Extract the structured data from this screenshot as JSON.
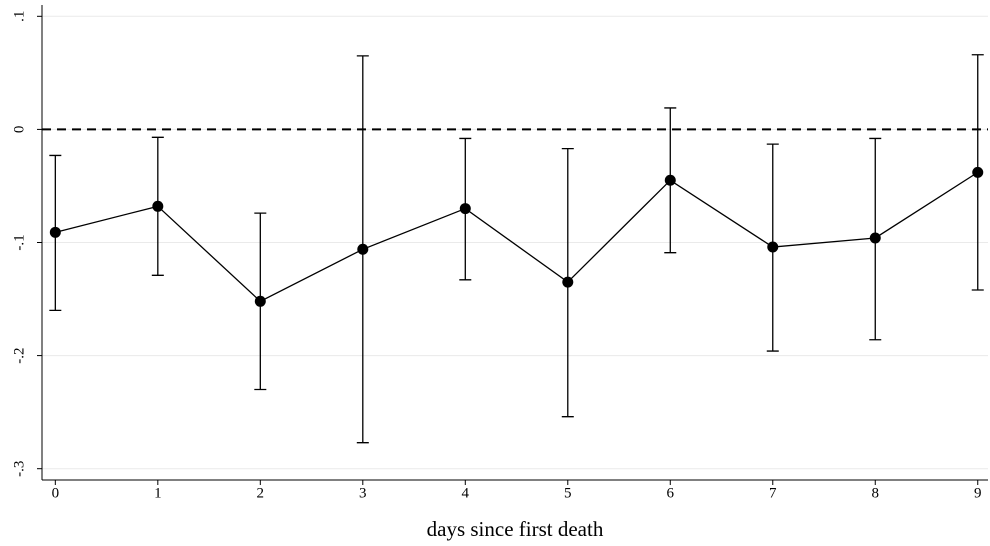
{
  "chart_data": {
    "type": "line",
    "xlabel": "days since first death",
    "x": [
      0,
      1,
      2,
      3,
      4,
      5,
      6,
      7,
      8,
      9
    ],
    "series": [
      {
        "color": "#000000",
        "values": [
          -0.091,
          -0.068,
          -0.152,
          -0.106,
          -0.07,
          -0.135,
          -0.045,
          -0.104,
          -0.096,
          -0.038
        ],
        "lower": [
          -0.16,
          -0.129,
          -0.23,
          -0.277,
          -0.133,
          -0.254,
          -0.109,
          -0.196,
          -0.186,
          -0.142
        ],
        "upper": [
          -0.023,
          -0.007,
          -0.074,
          0.065,
          -0.008,
          -0.017,
          0.019,
          -0.013,
          -0.008,
          0.066
        ]
      }
    ],
    "xlim": [
      -0.13,
      9.1
    ],
    "ylim": [
      -0.31,
      0.11
    ],
    "xticks": [
      0,
      1,
      2,
      3,
      4,
      5,
      6,
      7,
      8,
      9
    ],
    "yticks": [
      {
        "value": 0.1,
        "label": ".1"
      },
      0,
      {
        "value": -0.1,
        "label": "-.1"
      },
      {
        "value": -0.2,
        "label": "-.2"
      },
      {
        "value": -0.3,
        "label": "-.3"
      }
    ],
    "refline": 0,
    "grid": true
  }
}
